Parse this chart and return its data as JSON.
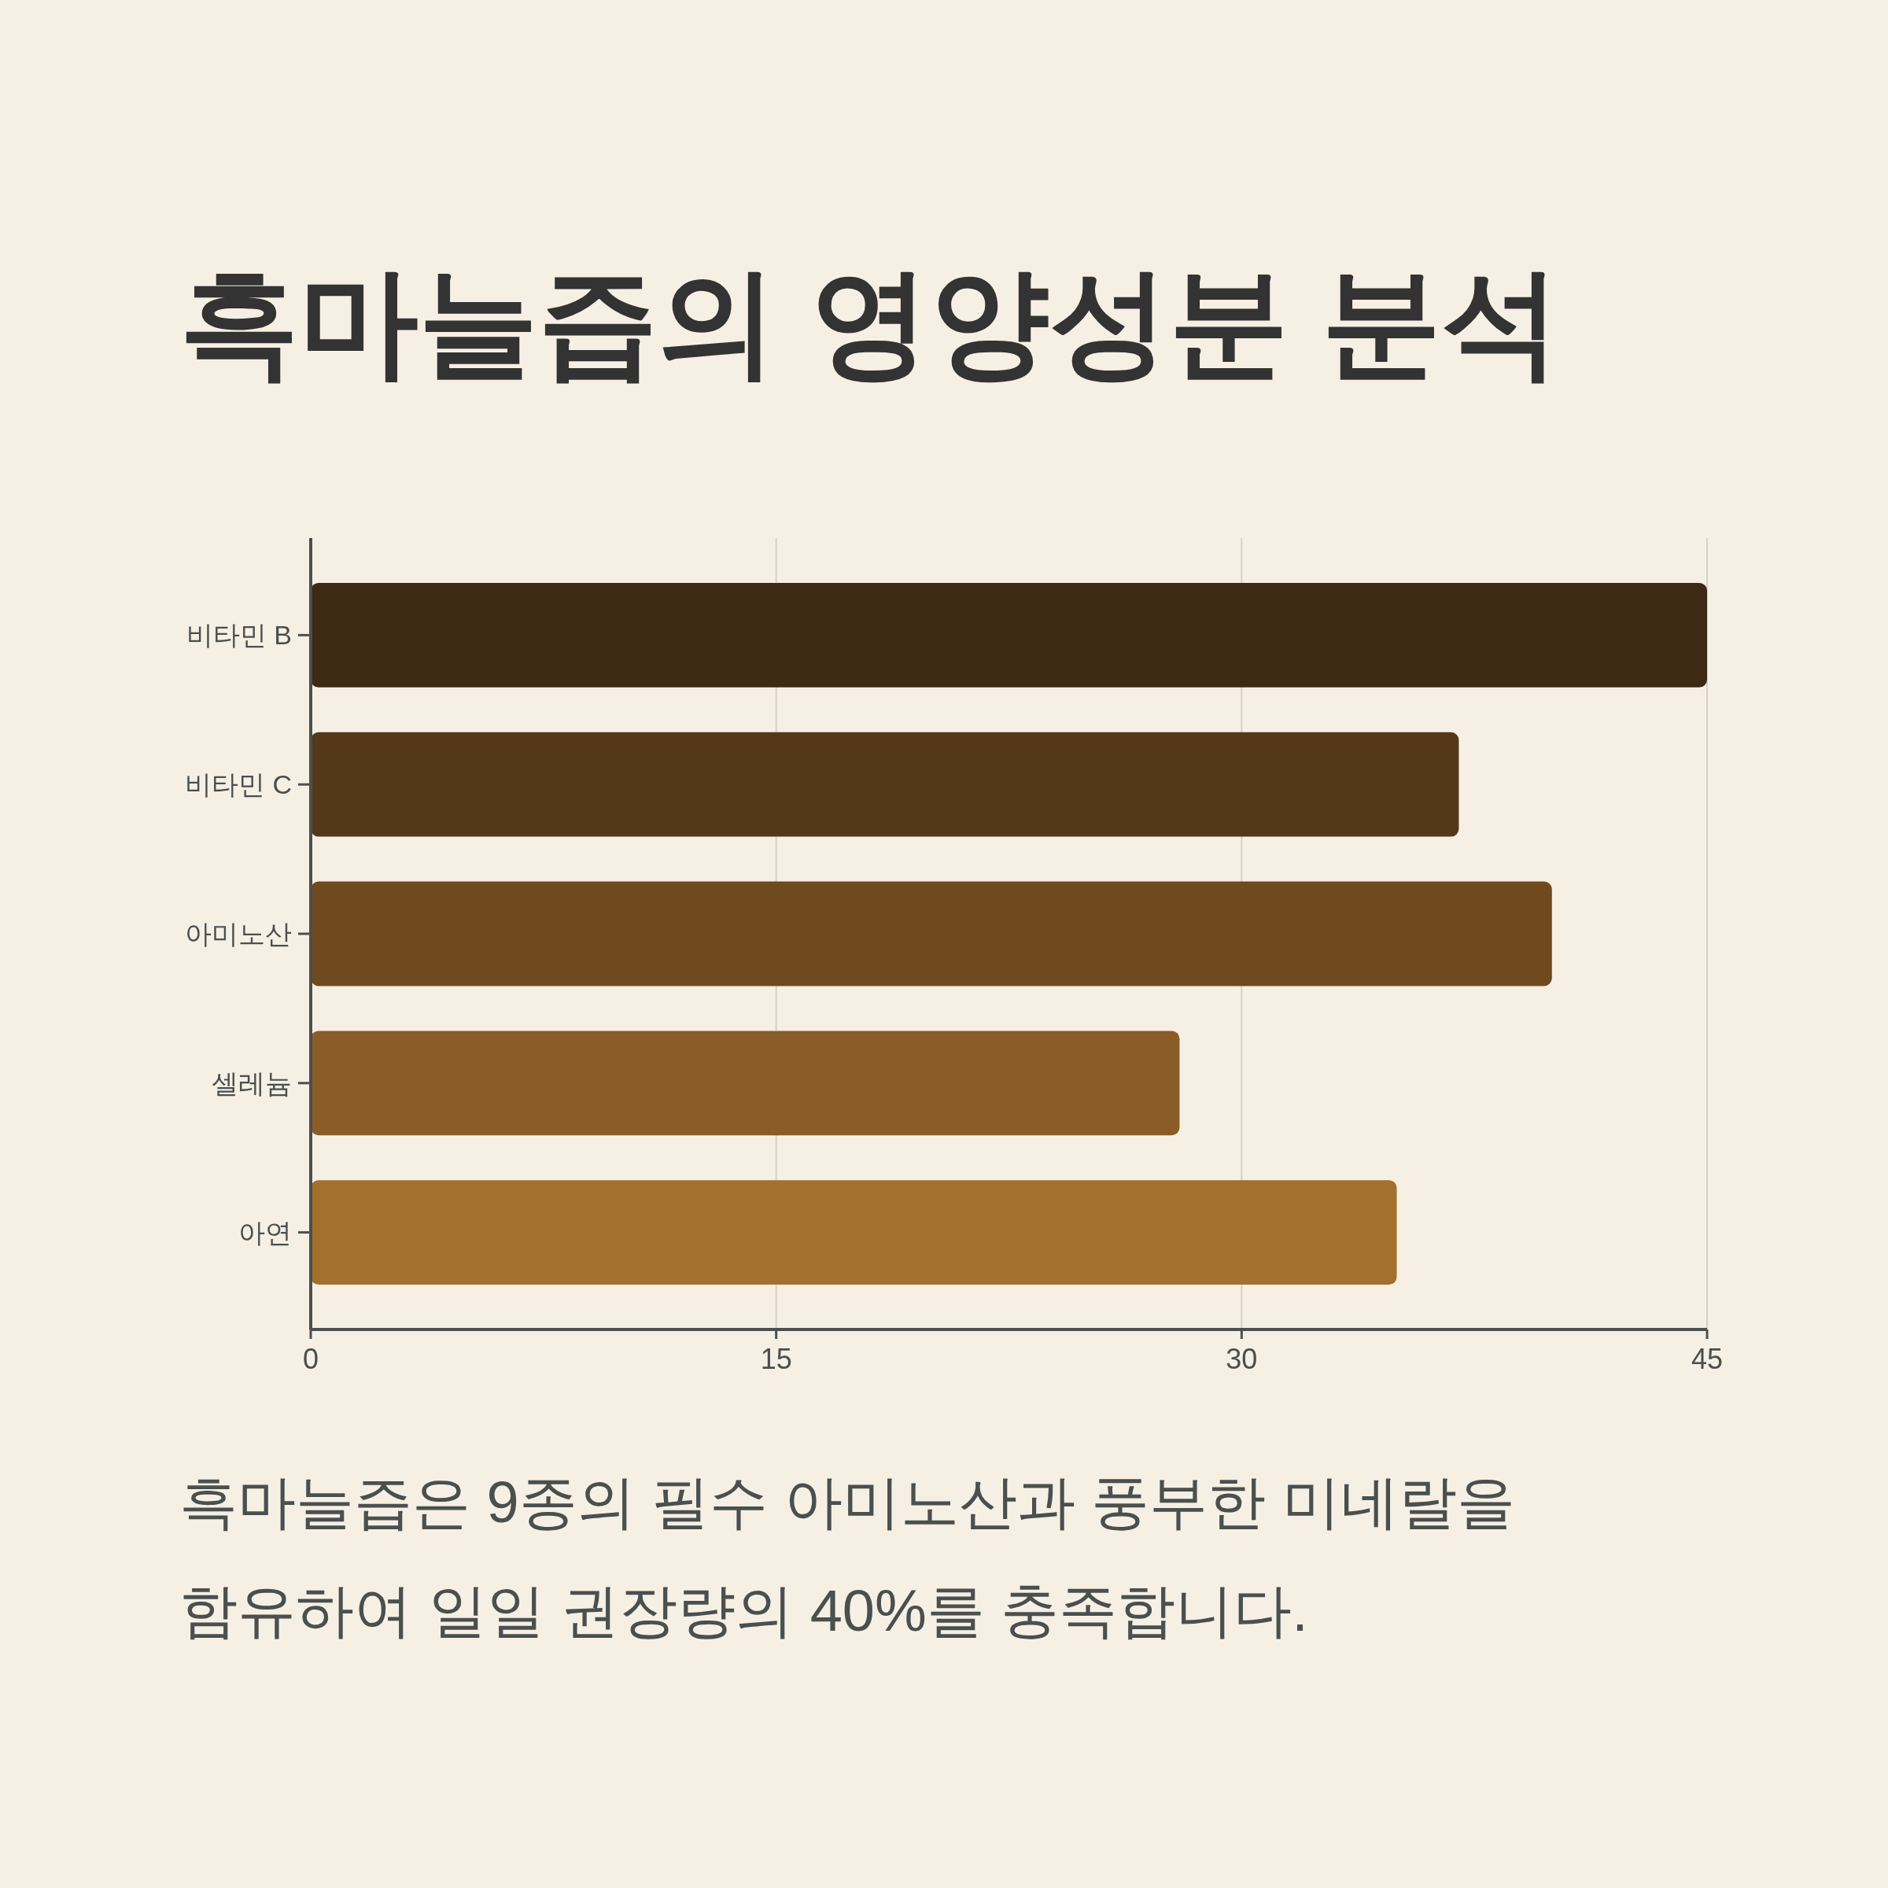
{
  "chart_data": {
    "type": "bar",
    "orientation": "horizontal",
    "title": "흑마늘즙의 영양성분 분석",
    "categories": [
      "비타민 B",
      "비타민 C",
      "아미노산",
      "셀레늄",
      "아연"
    ],
    "values": [
      45,
      37,
      40,
      28,
      35
    ],
    "colors": [
      "#3d2914",
      "#553818",
      "#6f4a1f",
      "#8a5c27",
      "#a3702e"
    ],
    "xlim": [
      0,
      45
    ],
    "xticks": [
      0,
      15,
      30,
      45
    ],
    "grid": "x",
    "annotations": [
      "흑마늘즙은 9종의 필수 아미노산과 풍부한 미네랄을 함유하여 일일 권장량의 40%를 충족합니다."
    ]
  }
}
